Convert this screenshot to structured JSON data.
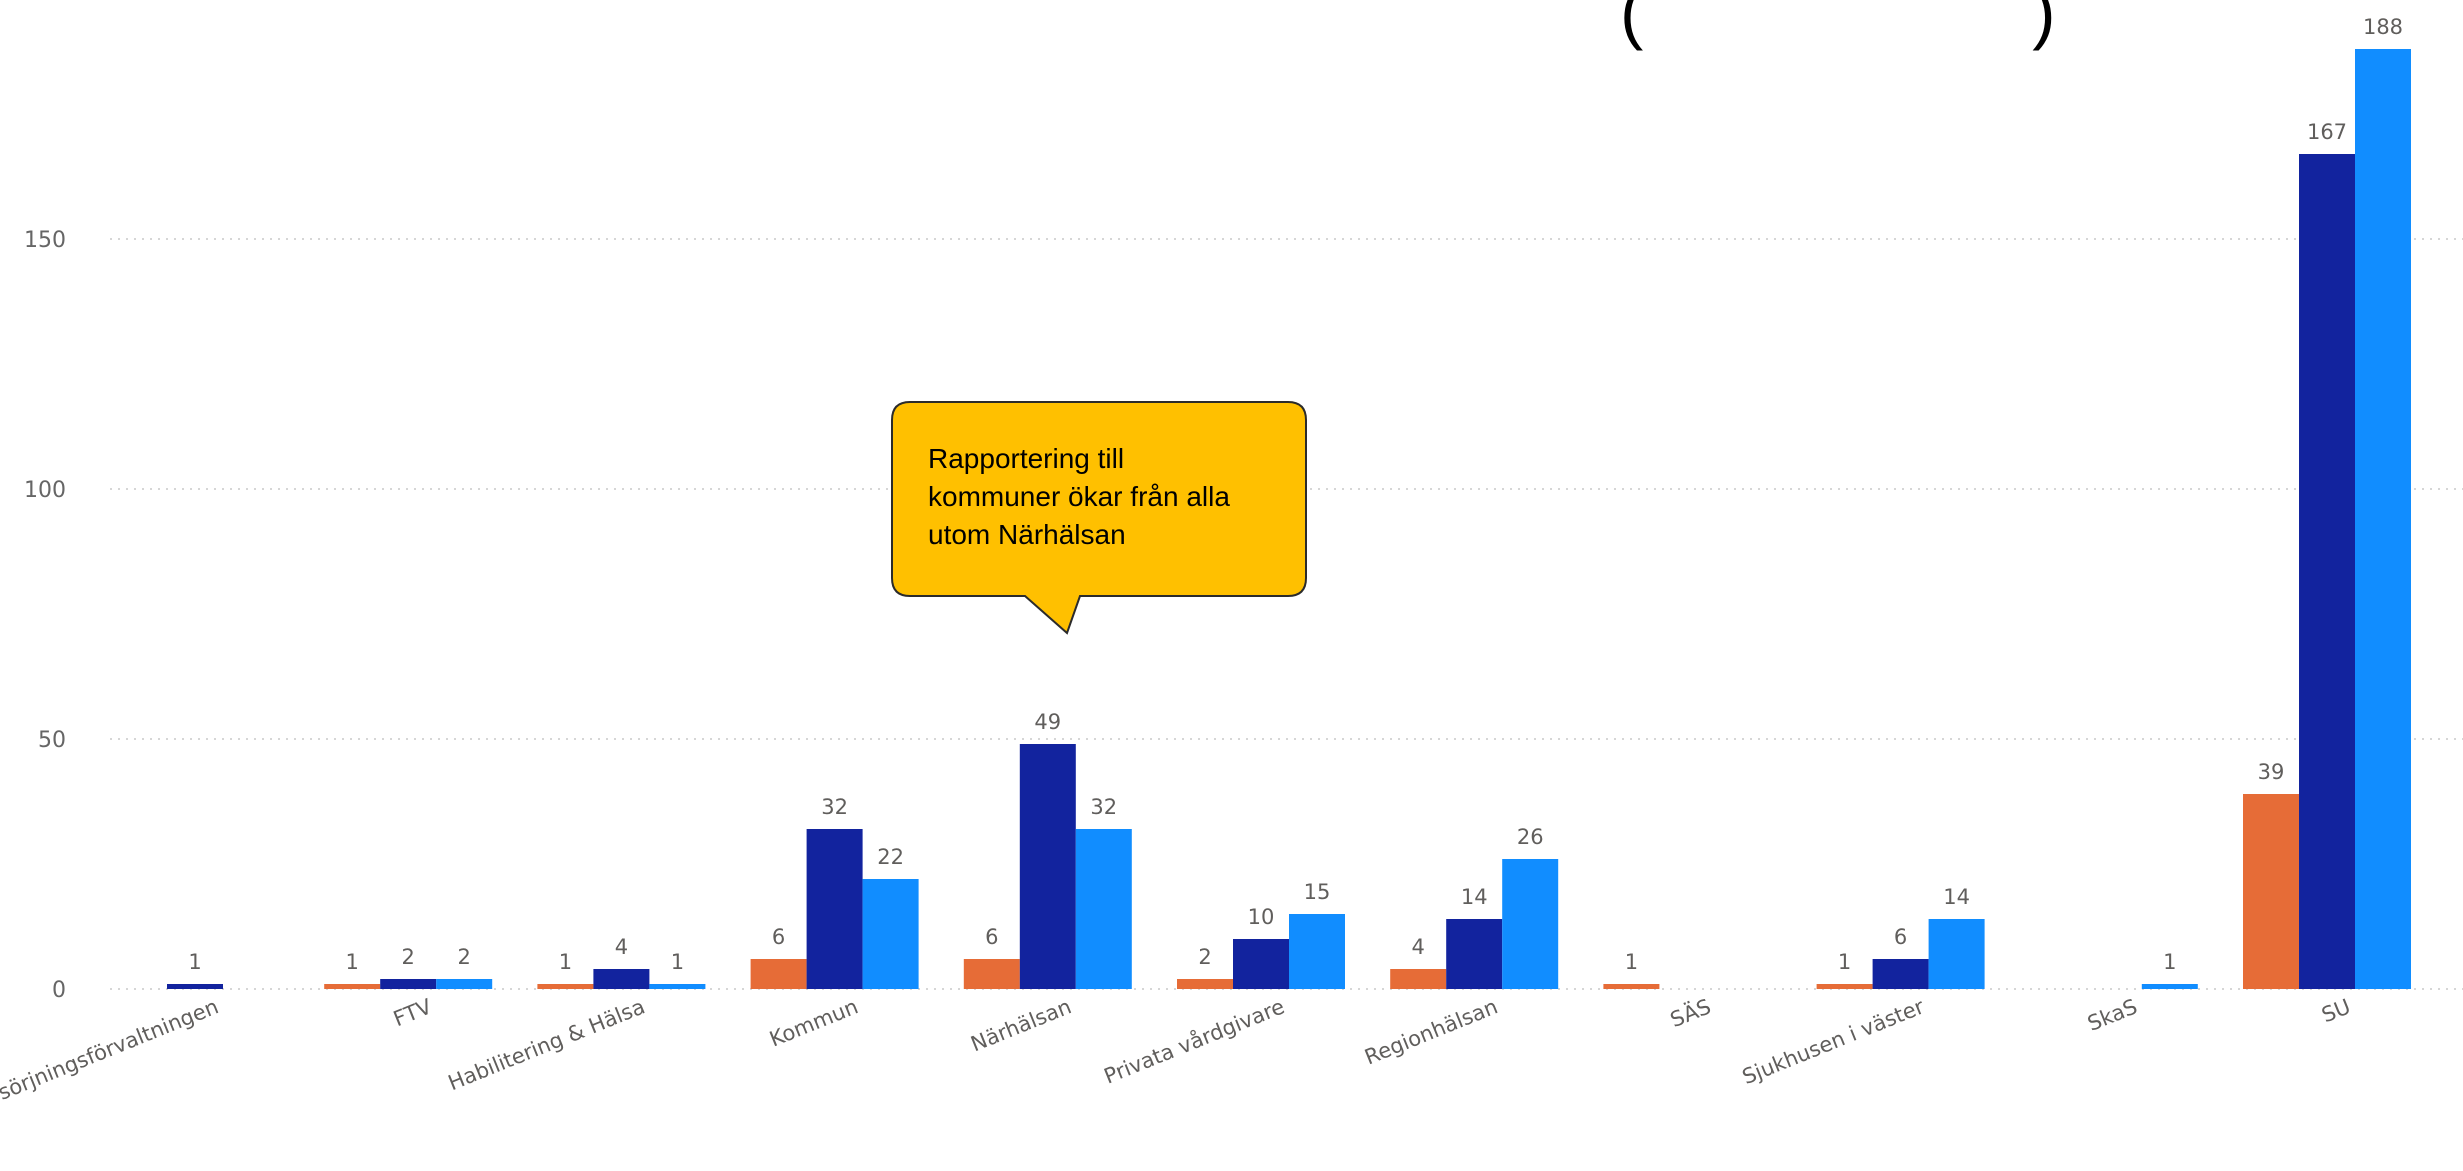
{
  "colors": {
    "series1": "#E66C37",
    "series2": "#12239E",
    "series3": "#118DFF",
    "callout_fill": "#FFC000"
  },
  "title_fragment": "(                    )",
  "callout": {
    "text": "Rapportering till\nkommuner ökar från alla\nutom Närhälsan"
  },
  "chart_data": {
    "type": "bar",
    "categories": [
      "Försörjningsförvaltningen",
      "FTV",
      "Habilitering & Hälsa",
      "Kommun",
      "Närhälsan",
      "Privata vårdgivare",
      "Regionhälsan",
      "SÄS",
      "Sjukhusen i väster",
      "SkaS",
      "SU"
    ],
    "series": [
      {
        "values": [
          null,
          1,
          1,
          6,
          6,
          2,
          4,
          1,
          1,
          null,
          39
        ]
      },
      {
        "values": [
          1,
          2,
          4,
          32,
          49,
          10,
          14,
          null,
          6,
          null,
          167
        ]
      },
      {
        "values": [
          null,
          2,
          1,
          22,
          32,
          15,
          26,
          null,
          14,
          1,
          188
        ]
      }
    ],
    "yticks": [
      0,
      50,
      100,
      150
    ],
    "ylim": [
      0,
      188
    ],
    "grid": true,
    "data_labels": true
  }
}
